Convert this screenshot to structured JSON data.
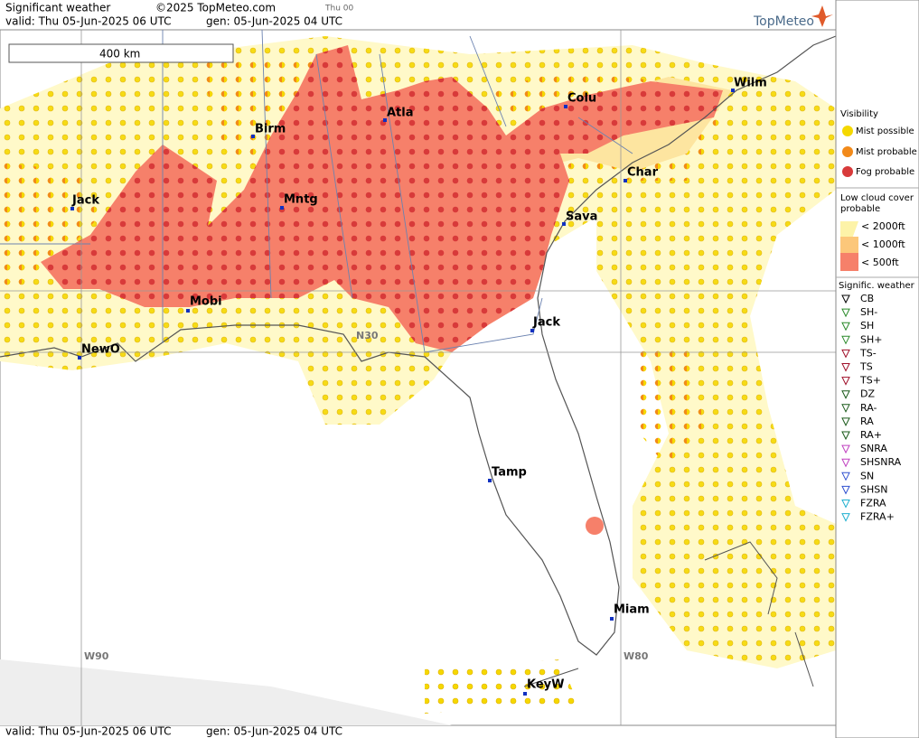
{
  "header": {
    "title": "Significant weather",
    "copyright": "©2025 TopMeteo.com",
    "run": "Thu 00",
    "valid": "valid:  Thu  05-Jun-2025  06 UTC",
    "gen": "gen:  05-Jun-2025 04 UTC",
    "brand": "TopMeteo"
  },
  "scale": "400 km",
  "grid_labels": [
    "N30",
    "W90",
    "W80"
  ],
  "cities": [
    "Birm",
    "Atla",
    "Colu",
    "Wilm",
    "Char",
    "Sava",
    "Jack",
    "Mntg",
    "Jack",
    "Mobi",
    "NewO",
    "Tamp",
    "Miam",
    "KeyW"
  ],
  "legend": {
    "visibility": {
      "title": "Visibility",
      "items": [
        "Mist possible",
        "Mist probable",
        "Fog probable"
      ]
    },
    "low_cloud": {
      "title": [
        "Low cloud cover",
        "probable"
      ],
      "items": [
        "< 2000ft",
        "< 1000ft",
        "<  500ft"
      ]
    },
    "weather": {
      "title": "Signific. weather",
      "items": [
        "CB",
        "SH-",
        "SH",
        "SH+",
        "TS-",
        "TS",
        "TS+",
        "DZ",
        "RA-",
        "RA",
        "RA+",
        "SNRA",
        "SHSNRA",
        "SN",
        "SHSN",
        "FZRA",
        "FZRA+"
      ]
    }
  },
  "footer": {
    "valid": "valid:  Thu  05-Jun-2025  06 UTC",
    "gen": "gen:  05-Jun-2025 04 UTC"
  }
}
